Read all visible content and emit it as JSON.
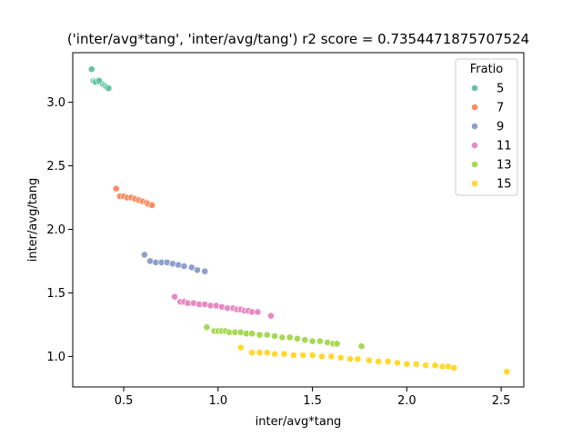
{
  "chart_data": {
    "type": "scatter",
    "title": "('inter/avg*tang', 'inter/avg/tang') r2 score = 0.7354471875707524",
    "xlabel": "inter/avg*tang",
    "ylabel": "inter/avg/tang",
    "xlim": [
      0.23,
      2.62
    ],
    "ylim": [
      0.76,
      3.39
    ],
    "xticks": [
      "0.5",
      "1.0",
      "1.5",
      "2.0",
      "2.5"
    ],
    "xtick_values": [
      0.5,
      1.0,
      1.5,
      2.0,
      2.5
    ],
    "yticks": [
      "1.0",
      "1.5",
      "2.0",
      "2.5",
      "3.0"
    ],
    "ytick_values": [
      1.0,
      1.5,
      2.0,
      2.5,
      3.0
    ],
    "grid": false,
    "legend": {
      "title": "Fratio",
      "placement": "top-right"
    },
    "series": [
      {
        "name": "5",
        "color": "#66c2a5",
        "points": [
          [
            0.33,
            3.26
          ],
          [
            0.34,
            3.17
          ],
          [
            0.35,
            3.17
          ],
          [
            0.36,
            3.17
          ],
          [
            0.37,
            3.16
          ],
          [
            0.38,
            3.15
          ],
          [
            0.39,
            3.14
          ],
          [
            0.4,
            3.13
          ],
          [
            0.41,
            3.12
          ],
          [
            0.42,
            3.11
          ],
          [
            0.35,
            3.16
          ],
          [
            0.37,
            3.17
          ]
        ]
      },
      {
        "name": "7",
        "color": "#fc8d62",
        "points": [
          [
            0.46,
            2.32
          ],
          [
            0.48,
            2.26
          ],
          [
            0.5,
            2.26
          ],
          [
            0.52,
            2.25
          ],
          [
            0.54,
            2.25
          ],
          [
            0.56,
            2.24
          ],
          [
            0.58,
            2.23
          ],
          [
            0.6,
            2.22
          ],
          [
            0.62,
            2.21
          ],
          [
            0.63,
            2.2
          ],
          [
            0.65,
            2.19
          ]
        ]
      },
      {
        "name": "9",
        "color": "#8da0cb",
        "points": [
          [
            0.61,
            1.8
          ],
          [
            0.64,
            1.75
          ],
          [
            0.67,
            1.74
          ],
          [
            0.7,
            1.74
          ],
          [
            0.73,
            1.74
          ],
          [
            0.76,
            1.73
          ],
          [
            0.79,
            1.72
          ],
          [
            0.82,
            1.71
          ],
          [
            0.86,
            1.7
          ],
          [
            0.89,
            1.68
          ],
          [
            0.93,
            1.67
          ]
        ]
      },
      {
        "name": "11",
        "color": "#e78ac3",
        "points": [
          [
            0.77,
            1.47
          ],
          [
            0.8,
            1.43
          ],
          [
            0.82,
            1.43
          ],
          [
            0.84,
            1.42
          ],
          [
            0.87,
            1.42
          ],
          [
            0.9,
            1.41
          ],
          [
            0.93,
            1.41
          ],
          [
            0.96,
            1.4
          ],
          [
            0.99,
            1.4
          ],
          [
            1.02,
            1.39
          ],
          [
            1.05,
            1.38
          ],
          [
            1.08,
            1.38
          ],
          [
            1.1,
            1.37
          ],
          [
            1.12,
            1.37
          ],
          [
            1.14,
            1.36
          ],
          [
            1.16,
            1.36
          ],
          [
            1.18,
            1.35
          ],
          [
            1.21,
            1.35
          ],
          [
            1.28,
            1.32
          ]
        ]
      },
      {
        "name": "13",
        "color": "#a6d854",
        "points": [
          [
            0.94,
            1.23
          ],
          [
            0.98,
            1.2
          ],
          [
            1.0,
            1.2
          ],
          [
            1.02,
            1.2
          ],
          [
            1.04,
            1.2
          ],
          [
            1.06,
            1.19
          ],
          [
            1.09,
            1.19
          ],
          [
            1.12,
            1.19
          ],
          [
            1.15,
            1.18
          ],
          [
            1.18,
            1.18
          ],
          [
            1.22,
            1.17
          ],
          [
            1.26,
            1.17
          ],
          [
            1.3,
            1.16
          ],
          [
            1.34,
            1.15
          ],
          [
            1.38,
            1.15
          ],
          [
            1.42,
            1.14
          ],
          [
            1.46,
            1.13
          ],
          [
            1.5,
            1.12
          ],
          [
            1.54,
            1.12
          ],
          [
            1.58,
            1.11
          ],
          [
            1.61,
            1.1
          ],
          [
            1.63,
            1.1
          ],
          [
            1.76,
            1.08
          ]
        ]
      },
      {
        "name": "15",
        "color": "#ffd92f",
        "points": [
          [
            1.12,
            1.07
          ],
          [
            1.18,
            1.03
          ],
          [
            1.22,
            1.03
          ],
          [
            1.26,
            1.03
          ],
          [
            1.3,
            1.02
          ],
          [
            1.35,
            1.02
          ],
          [
            1.4,
            1.01
          ],
          [
            1.45,
            1.01
          ],
          [
            1.5,
            1.01
          ],
          [
            1.55,
            1.0
          ],
          [
            1.6,
            1.0
          ],
          [
            1.65,
            0.99
          ],
          [
            1.7,
            0.98
          ],
          [
            1.74,
            0.98
          ],
          [
            1.8,
            0.97
          ],
          [
            1.85,
            0.96
          ],
          [
            1.9,
            0.96
          ],
          [
            1.95,
            0.95
          ],
          [
            2.0,
            0.94
          ],
          [
            2.05,
            0.94
          ],
          [
            2.1,
            0.93
          ],
          [
            2.15,
            0.93
          ],
          [
            2.19,
            0.92
          ],
          [
            2.22,
            0.92
          ],
          [
            2.25,
            0.91
          ],
          [
            2.53,
            0.88
          ]
        ]
      }
    ]
  }
}
